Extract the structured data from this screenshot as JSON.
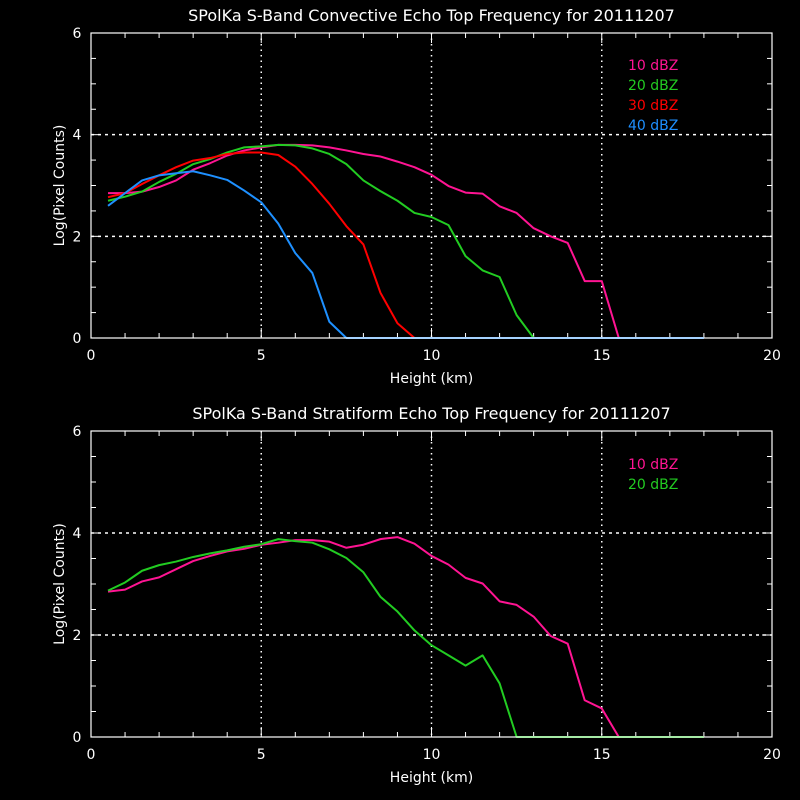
{
  "chart_data": [
    {
      "type": "line",
      "title": "SPolKa S-Band Convective Echo Top Frequency for 20111207",
      "xlabel": "Height (km)",
      "ylabel": "Log(Pixel Counts)",
      "xlim": [
        0,
        20
      ],
      "ylim": [
        0,
        6
      ],
      "xticks": [
        "0",
        "5",
        "10",
        "15",
        "20"
      ],
      "yticks": [
        "0",
        "2",
        "4",
        "6"
      ],
      "grid": "dotted at major ticks",
      "legend_position": "top-right",
      "series": [
        {
          "name": "10 dBZ",
          "color": "#ff1493",
          "x": [
            0.5,
            1,
            1.5,
            2,
            2.5,
            3,
            3.5,
            4,
            4.5,
            5,
            5.5,
            6,
            6.5,
            7,
            7.5,
            8,
            8.5,
            9,
            9.5,
            10,
            10.5,
            11,
            11.5,
            12,
            12.5,
            13,
            13.5,
            14,
            14.5,
            15,
            15.5,
            18
          ],
          "y": [
            2.85,
            2.85,
            2.88,
            2.97,
            3.1,
            3.31,
            3.44,
            3.59,
            3.69,
            3.75,
            3.8,
            3.8,
            3.79,
            3.75,
            3.69,
            3.62,
            3.57,
            3.47,
            3.36,
            3.21,
            2.99,
            2.86,
            2.84,
            2.59,
            2.46,
            2.16,
            2.0,
            1.87,
            1.12,
            1.12,
            0,
            0
          ]
        },
        {
          "name": "20 dBZ",
          "color": "#22cc22",
          "x": [
            0.5,
            1,
            1.5,
            2,
            2.5,
            3,
            3.5,
            4,
            4.5,
            5,
            5.5,
            6,
            6.5,
            7,
            7.5,
            8,
            8.5,
            9,
            9.5,
            10,
            10.5,
            11,
            11.5,
            12,
            12.5,
            13,
            18
          ],
          "y": [
            2.7,
            2.78,
            2.88,
            3.07,
            3.23,
            3.42,
            3.52,
            3.65,
            3.75,
            3.77,
            3.8,
            3.79,
            3.73,
            3.62,
            3.42,
            3.1,
            2.89,
            2.7,
            2.46,
            2.38,
            2.22,
            1.61,
            1.33,
            1.2,
            0.45,
            0,
            0
          ]
        },
        {
          "name": "30 dBZ",
          "color": "#ff0000",
          "x": [
            0.5,
            1,
            1.5,
            2,
            2.5,
            3,
            3.5,
            4,
            4.5,
            5,
            5.5,
            6,
            6.5,
            7,
            7.5,
            8,
            8.5,
            9,
            9.5,
            18
          ],
          "y": [
            2.77,
            2.85,
            3.03,
            3.2,
            3.36,
            3.49,
            3.54,
            3.62,
            3.65,
            3.65,
            3.6,
            3.37,
            3.03,
            2.64,
            2.2,
            1.84,
            0.89,
            0.29,
            0,
            0
          ]
        },
        {
          "name": "40 dBZ",
          "color": "#1e90ff",
          "x": [
            0.5,
            1,
            1.5,
            2,
            2.5,
            3,
            3.5,
            4,
            4.5,
            5,
            5.5,
            6,
            6.5,
            7,
            7.5,
            18
          ],
          "y": [
            2.6,
            2.85,
            3.1,
            3.2,
            3.24,
            3.28,
            3.2,
            3.11,
            2.9,
            2.67,
            2.25,
            1.67,
            1.28,
            0.32,
            0,
            0
          ]
        }
      ]
    },
    {
      "type": "line",
      "title": "SPolKa S-Band Stratiform Echo Top Frequency for 20111207",
      "xlabel": "Height (km)",
      "ylabel": "Log(Pixel Counts)",
      "xlim": [
        0,
        20
      ],
      "ylim": [
        0,
        6
      ],
      "xticks": [
        "0",
        "5",
        "10",
        "15",
        "20"
      ],
      "yticks": [
        "0",
        "2",
        "4",
        "6"
      ],
      "grid": "dotted at major ticks",
      "legend_position": "top-right",
      "series": [
        {
          "name": "10 dBZ",
          "color": "#ff1493",
          "x": [
            0.5,
            1,
            1.5,
            2,
            2.5,
            3,
            3.5,
            4,
            4.5,
            5,
            5.5,
            6,
            6.5,
            7,
            7.5,
            8,
            8.5,
            9,
            9.5,
            10,
            10.5,
            11,
            11.5,
            12,
            12.5,
            13,
            13.5,
            14,
            14.5,
            15,
            15.5,
            18
          ],
          "y": [
            2.85,
            2.89,
            3.05,
            3.13,
            3.29,
            3.45,
            3.55,
            3.64,
            3.69,
            3.77,
            3.81,
            3.86,
            3.86,
            3.83,
            3.71,
            3.77,
            3.88,
            3.92,
            3.79,
            3.55,
            3.38,
            3.12,
            3.01,
            2.66,
            2.59,
            2.36,
            1.98,
            1.83,
            0.72,
            0.56,
            0,
            0
          ]
        },
        {
          "name": "20 dBZ",
          "color": "#22cc22",
          "x": [
            0.5,
            1,
            1.5,
            2,
            2.5,
            3,
            3.5,
            4,
            4.5,
            5,
            5.5,
            6,
            6.5,
            7,
            7.5,
            8,
            8.5,
            9,
            9.5,
            10,
            10.5,
            11,
            11.5,
            12,
            12.5,
            18
          ],
          "y": [
            2.87,
            3.03,
            3.26,
            3.37,
            3.44,
            3.53,
            3.6,
            3.66,
            3.73,
            3.78,
            3.88,
            3.84,
            3.81,
            3.68,
            3.51,
            3.23,
            2.75,
            2.46,
            2.09,
            1.8,
            1.6,
            1.4,
            1.6,
            1.05,
            0,
            0
          ]
        }
      ]
    }
  ]
}
